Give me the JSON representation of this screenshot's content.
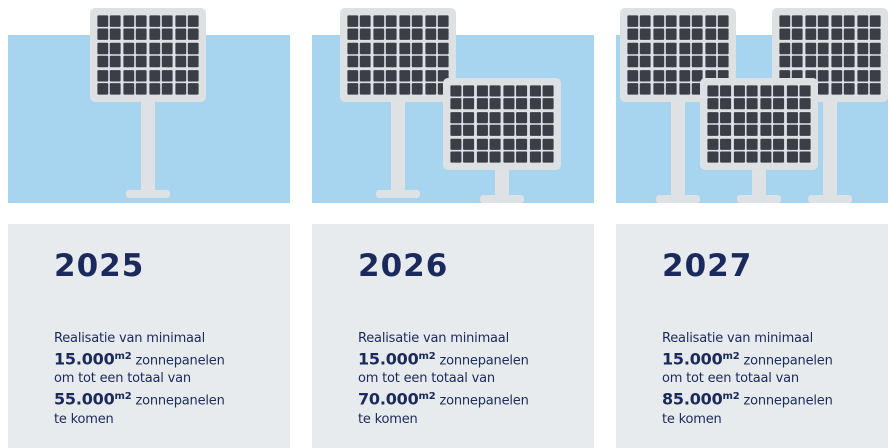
{
  "cards": [
    {
      "year": "2025",
      "intro": "Realisatie van minimaal",
      "amount1": "15.000",
      "unit1": "m2",
      "rest1": "zonnepanelen",
      "middle": "om tot een totaal van",
      "amount2": "55.000",
      "unit2": "m2",
      "rest2": "zonnepanelen",
      "outro": "te komen"
    },
    {
      "year": "2026",
      "intro": "Realisatie van minimaal",
      "amount1": "15.000",
      "unit1": "m2",
      "rest1": "zonnepanelen",
      "middle": "om tot een totaal van",
      "amount2": "70.000",
      "unit2": "m2",
      "rest2": "zonnepanelen",
      "outro": "te komen"
    },
    {
      "year": "2027",
      "intro": "Realisatie van minimaal",
      "amount1": "15.000",
      "unit1": "m2",
      "rest1": "zonnepanelen",
      "middle": "om tot een totaal van",
      "amount2": "85.000",
      "unit2": "m2",
      "rest2": "zonnepanelen",
      "outro": "te komen"
    }
  ]
}
